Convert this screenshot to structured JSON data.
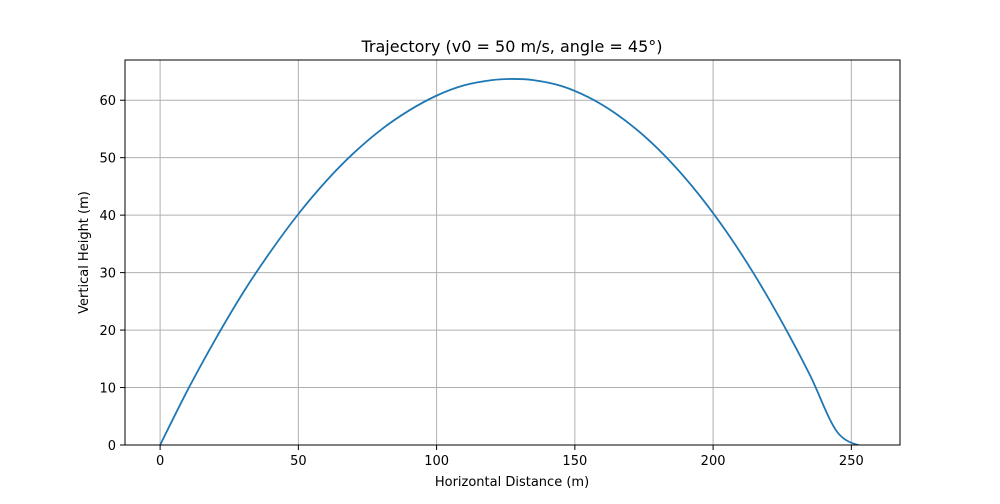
{
  "chart_data": {
    "type": "line",
    "title": "Trajectory (v0 = 50 m/s, angle = 45°)",
    "xlabel": "Horizontal Distance (m)",
    "ylabel": "Vertical Height (m)",
    "xlim": [
      -12.7,
      267.6
    ],
    "ylim": [
      0,
      67
    ],
    "xticks": [
      0,
      50,
      100,
      150,
      200,
      250
    ],
    "yticks": [
      0,
      10,
      20,
      30,
      40,
      50,
      60
    ],
    "xtick_labels": [
      "0",
      "50",
      "100",
      "150",
      "200",
      "250"
    ],
    "ytick_labels": [
      "0",
      "10",
      "20",
      "30",
      "40",
      "50",
      "60"
    ],
    "grid": true,
    "series": [
      {
        "color": "#1f77b4",
        "x": [
          0,
          10,
          20,
          30,
          40,
          50,
          60,
          70,
          80,
          90,
          100,
          110,
          120,
          127.5,
          135,
          145,
          155,
          165,
          175,
          185,
          195,
          205,
          215,
          225,
          235,
          245,
          255
        ],
        "y": [
          0,
          9.6,
          18.4,
          26.5,
          33.7,
          40.2,
          45.9,
          50.8,
          54.9,
          58.2,
          60.8,
          62.6,
          63.5,
          63.7,
          63.5,
          62.5,
          60.5,
          57.6,
          53.8,
          49.1,
          43.5,
          37.0,
          29.6,
          21.3,
          12.2,
          2.2,
          -0.4
        ]
      }
    ]
  }
}
